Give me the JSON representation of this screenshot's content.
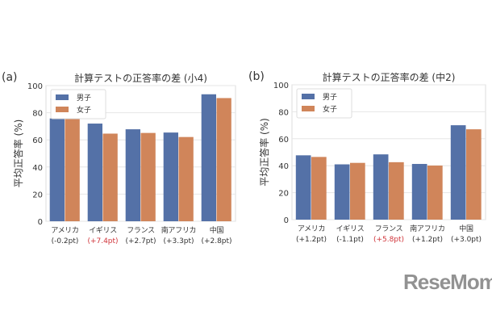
{
  "colors": {
    "boys": "#5471a7",
    "girls": "#d0855a",
    "highlight": "#d0343a"
  },
  "watermark": "ReseMom",
  "chart_data": [
    {
      "type": "bar",
      "panel": "(a)",
      "title": "計算テストの正答率の差 (小4)",
      "ylabel": "平均正答率 (%)",
      "ylim": [
        0,
        100
      ],
      "yticks": [
        0,
        20,
        40,
        60,
        80,
        100
      ],
      "grid": true,
      "legend": "top-left",
      "categories": [
        "アメリカ",
        "イギリス",
        "フランス",
        "南アフリカ",
        "中国"
      ],
      "diff_labels": [
        "(-0.2pt)",
        "(+7.4pt)",
        "(+2.7pt)",
        "(+3.3pt)",
        "(+2.8pt)"
      ],
      "highlight_index": [
        1
      ],
      "series": [
        {
          "name": "男子",
          "values": [
            75.8,
            72.0,
            67.8,
            65.4,
            93.6
          ]
        },
        {
          "name": "女子",
          "values": [
            76.0,
            64.6,
            65.1,
            62.1,
            90.8
          ]
        }
      ]
    },
    {
      "type": "bar",
      "panel": "(b)",
      "title": "計算テストの正答率の差 (中2)",
      "ylabel": "平均正答率 (%)",
      "ylim": [
        0,
        100
      ],
      "yticks": [
        0,
        20,
        40,
        60,
        80,
        100
      ],
      "grid": true,
      "legend": "top-left",
      "categories": [
        "アメリカ",
        "イギリス",
        "フランス",
        "南アフリカ",
        "中国"
      ],
      "diff_labels": [
        "(+1.2pt)",
        "(-1.1pt)",
        "(+5.8pt)",
        "(+1.2pt)",
        "(+3.0pt)"
      ],
      "highlight_index": [
        2
      ],
      "series": [
        {
          "name": "男子",
          "values": [
            47.7,
            41.0,
            48.4,
            41.3,
            70.0
          ]
        },
        {
          "name": "女子",
          "values": [
            46.5,
            42.1,
            42.6,
            40.1,
            67.0
          ]
        }
      ]
    }
  ]
}
